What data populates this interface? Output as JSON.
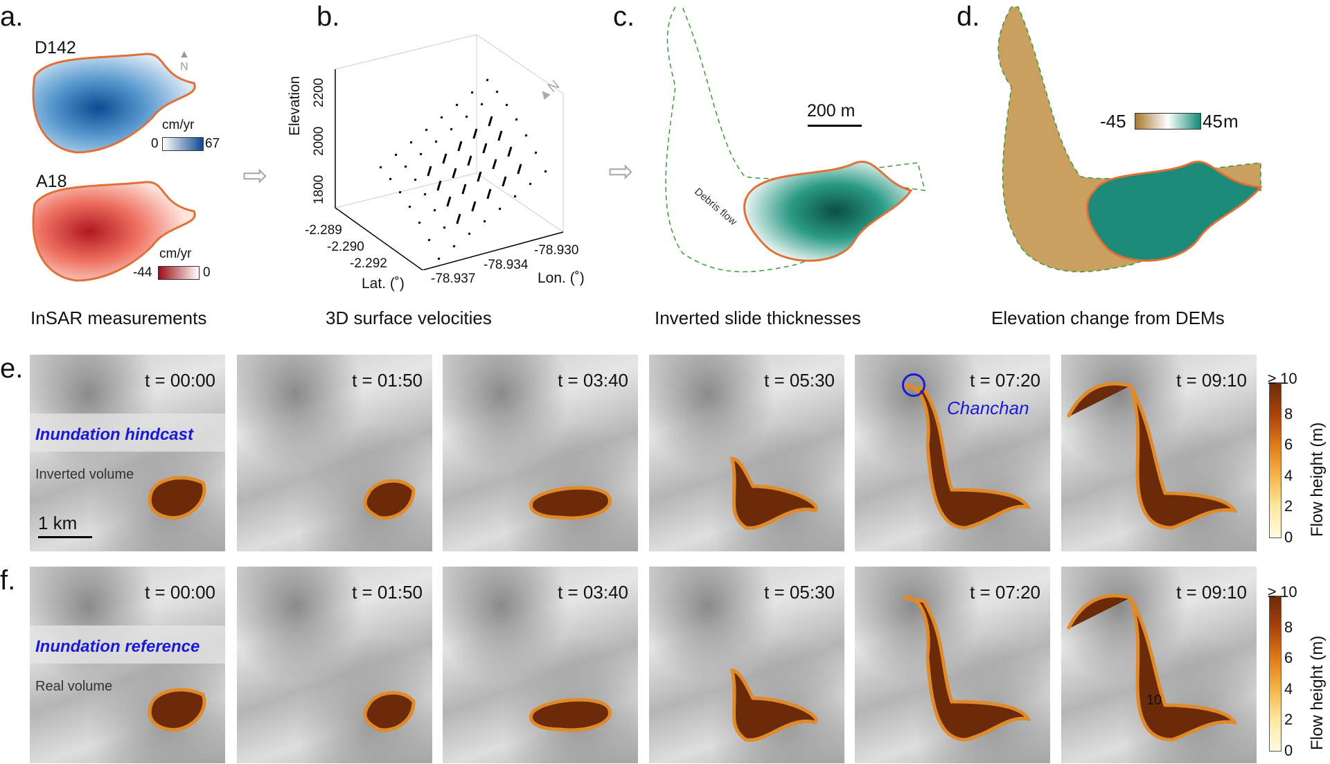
{
  "panels": {
    "a": {
      "label": "a.",
      "caption": "InSAR measurements",
      "d142": {
        "title": "D142",
        "unit": "cm/yr",
        "min": "0",
        "max": "67"
      },
      "a18": {
        "title": "A18",
        "unit": "cm/yr",
        "min": "-44",
        "max": "0"
      },
      "north": "N"
    },
    "b": {
      "label": "b.",
      "caption": "3D surface velocities",
      "zlabel": "Elevation",
      "zticks": [
        "1800",
        "2000",
        "2200"
      ],
      "latlabel": "Lat. (˚)",
      "latticks": [
        "-2.289",
        "-2.290",
        "-2.292"
      ],
      "lonlabel": "Lon. (˚)",
      "lonticks": [
        "-78.937",
        "-78.934",
        "-78.930"
      ],
      "north": "N"
    },
    "c": {
      "label": "c.",
      "caption": "Inverted slide thicknesses",
      "scalebar": "200 m",
      "flow_label": "Debris flow"
    },
    "d": {
      "label": "d.",
      "caption": "Elevation change from DEMs",
      "cmin": "-45",
      "cmax": "45",
      "unit": "m"
    }
  },
  "rows": [
    {
      "label": "e.",
      "title": "Inundation hindcast",
      "volume_label": "Inverted volume",
      "scalebar": "1 km",
      "times": [
        "t = 00:00",
        "t = 01:50",
        "t = 03:40",
        "t = 05:30",
        "t = 07:20",
        "t = 09:10"
      ],
      "place": "Chanchan"
    },
    {
      "label": "f.",
      "title": "Inundation reference",
      "volume_label": "Real volume",
      "times": [
        "t = 00:00",
        "t = 01:50",
        "t = 03:40",
        "t = 05:30",
        "t = 07:20",
        "t = 09:10"
      ],
      "contour": "10"
    }
  ],
  "colorbar": {
    "title": "Flow height (m)",
    "ticks": [
      "0",
      "2",
      "4",
      "6",
      "8",
      "≥ 10"
    ]
  },
  "colors": {
    "outline": "#e07038",
    "title_blue": "#1a1ad6",
    "flow": "#6b2b0a",
    "teal": "#0f6f5c",
    "tan": "#c9a060"
  }
}
